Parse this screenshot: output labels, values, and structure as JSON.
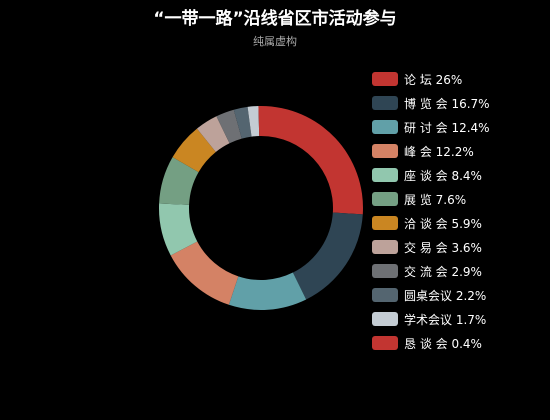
{
  "chart_data": {
    "type": "pie",
    "title": "“一带一路”沿线省区市活动参与",
    "subtitle": "纯属虚构",
    "legend_position": "right",
    "slices": [
      {
        "name": "论 坛",
        "value": 26,
        "label": "论 坛 26%",
        "color": "#c23531"
      },
      {
        "name": "博 览 会",
        "value": 16.7,
        "label": "博 览 会 16.7%",
        "color": "#2f4554"
      },
      {
        "name": "研 讨 会",
        "value": 12.4,
        "label": "研 讨 会 12.4%",
        "color": "#61a0a8"
      },
      {
        "name": "峰 会",
        "value": 12.2,
        "label": "峰 会 12.2%",
        "color": "#d48265"
      },
      {
        "name": "座 谈 会",
        "value": 8.4,
        "label": "座 谈 会 8.4%",
        "color": "#91c7ae"
      },
      {
        "name": "展 览",
        "value": 7.6,
        "label": "展 览 7.6%",
        "color": "#749f83"
      },
      {
        "name": "洽 谈 会",
        "value": 5.9,
        "label": "洽 谈 会 5.9%",
        "color": "#ca8622"
      },
      {
        "name": "交 易 会",
        "value": 3.6,
        "label": "交 易 会 3.6%",
        "color": "#bda29a"
      },
      {
        "name": "交 流 会",
        "value": 2.9,
        "label": "交 流 会 2.9%",
        "color": "#6e7074"
      },
      {
        "name": "圆桌会议",
        "value": 2.2,
        "label": "圆桌会议 2.2%",
        "color": "#546570"
      },
      {
        "name": "学术会议",
        "value": 1.7,
        "label": "学术会议 1.7%",
        "color": "#c4ccd3"
      },
      {
        "name": "恳 谈 会",
        "value": 0.4,
        "label": "恳 谈 会 0.4%",
        "color": "#c23531"
      }
    ]
  }
}
